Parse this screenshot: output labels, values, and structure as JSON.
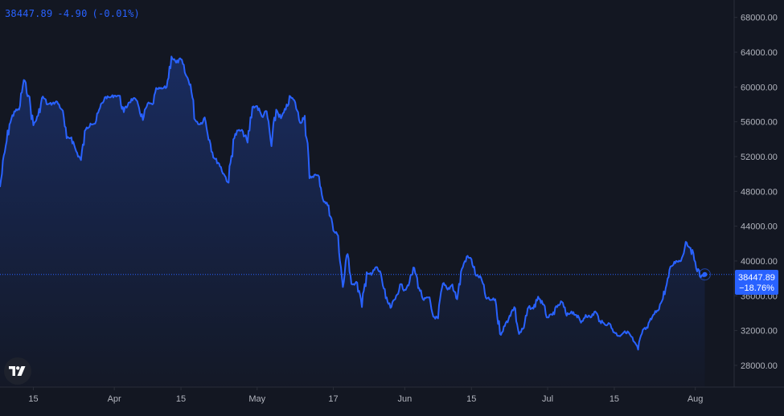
{
  "legend": {
    "last": "38447.89",
    "change": "-4.90",
    "change_pct": "(-0.01%)"
  },
  "colors": {
    "background": "#131722",
    "line": "#2962ff",
    "axis_text": "#b2b5be",
    "grid_border": "#2a2e39"
  },
  "icons": {
    "logo": "tradingview-logo-icon"
  },
  "price_label": {
    "value": "38447.89",
    "pct": "−18.76%"
  },
  "chart_data": {
    "type": "area",
    "title": "",
    "xlabel": "",
    "ylabel": "",
    "grid": false,
    "legend": "top-left",
    "y_axis_position": "right",
    "ylim": [
      25500,
      70000
    ],
    "xlim": [
      "2021-03-08",
      "2021-08-09"
    ],
    "y_ticks": [
      {
        "value": 28000,
        "label": "28000.00"
      },
      {
        "value": 32000,
        "label": "32000.00"
      },
      {
        "value": 36000,
        "label": "36000.00"
      },
      {
        "value": 40000,
        "label": "40000.00"
      },
      {
        "value": 44000,
        "label": "44000.00"
      },
      {
        "value": 48000,
        "label": "48000.00"
      },
      {
        "value": 52000,
        "label": "52000.00"
      },
      {
        "value": 56000,
        "label": "56000.00"
      },
      {
        "value": 60000,
        "label": "60000.00"
      },
      {
        "value": 64000,
        "label": "64000.00"
      },
      {
        "value": 68000,
        "label": "68000.00"
      }
    ],
    "x_ticks": [
      {
        "date": "2021-03-15",
        "label": "15"
      },
      {
        "date": "2021-04-01",
        "label": "Apr"
      },
      {
        "date": "2021-04-15",
        "label": "15"
      },
      {
        "date": "2021-05-01",
        "label": "May"
      },
      {
        "date": "2021-05-17",
        "label": "17"
      },
      {
        "date": "2021-06-01",
        "label": "Jun"
      },
      {
        "date": "2021-06-15",
        "label": "15"
      },
      {
        "date": "2021-07-01",
        "label": "Jul"
      },
      {
        "date": "2021-07-15",
        "label": "15"
      },
      {
        "date": "2021-08-01",
        "label": "Aug"
      }
    ],
    "reference_value": 38447.89,
    "series": [
      {
        "x": [
          "2021-03-08",
          "2021-03-09",
          "2021-03-10",
          "2021-03-11",
          "2021-03-12",
          "2021-03-13",
          "2021-03-14",
          "2021-03-15",
          "2021-03-16",
          "2021-03-17",
          "2021-03-18",
          "2021-03-19",
          "2021-03-20",
          "2021-03-21",
          "2021-03-22",
          "2021-03-23",
          "2021-03-24",
          "2021-03-25",
          "2021-03-26",
          "2021-03-27",
          "2021-03-28",
          "2021-03-29",
          "2021-03-30",
          "2021-03-31",
          "2021-04-01",
          "2021-04-02",
          "2021-04-03",
          "2021-04-04",
          "2021-04-05",
          "2021-04-06",
          "2021-04-07",
          "2021-04-08",
          "2021-04-09",
          "2021-04-10",
          "2021-04-11",
          "2021-04-12",
          "2021-04-13",
          "2021-04-14",
          "2021-04-15",
          "2021-04-16",
          "2021-04-17",
          "2021-04-18",
          "2021-04-19",
          "2021-04-20",
          "2021-04-21",
          "2021-04-22",
          "2021-04-23",
          "2021-04-24",
          "2021-04-25",
          "2021-04-26",
          "2021-04-27",
          "2021-04-28",
          "2021-04-29",
          "2021-04-30",
          "2021-05-01",
          "2021-05-02",
          "2021-05-03",
          "2021-05-04",
          "2021-05-05",
          "2021-05-06",
          "2021-05-07",
          "2021-05-08",
          "2021-05-09",
          "2021-05-10",
          "2021-05-11",
          "2021-05-12",
          "2021-05-13",
          "2021-05-14",
          "2021-05-15",
          "2021-05-16",
          "2021-05-17",
          "2021-05-18",
          "2021-05-19",
          "2021-05-20",
          "2021-05-21",
          "2021-05-22",
          "2021-05-23",
          "2021-05-24",
          "2021-05-25",
          "2021-05-26",
          "2021-05-27",
          "2021-05-28",
          "2021-05-29",
          "2021-05-30",
          "2021-05-31",
          "2021-06-01",
          "2021-06-02",
          "2021-06-03",
          "2021-06-04",
          "2021-06-05",
          "2021-06-06",
          "2021-06-07",
          "2021-06-08",
          "2021-06-09",
          "2021-06-10",
          "2021-06-11",
          "2021-06-12",
          "2021-06-13",
          "2021-06-14",
          "2021-06-15",
          "2021-06-16",
          "2021-06-17",
          "2021-06-18",
          "2021-06-19",
          "2021-06-20",
          "2021-06-21",
          "2021-06-22",
          "2021-06-23",
          "2021-06-24",
          "2021-06-25",
          "2021-06-26",
          "2021-06-27",
          "2021-06-28",
          "2021-06-29",
          "2021-06-30",
          "2021-07-01",
          "2021-07-02",
          "2021-07-03",
          "2021-07-04",
          "2021-07-05",
          "2021-07-06",
          "2021-07-07",
          "2021-07-08",
          "2021-07-09",
          "2021-07-10",
          "2021-07-11",
          "2021-07-12",
          "2021-07-13",
          "2021-07-14",
          "2021-07-15",
          "2021-07-16",
          "2021-07-17",
          "2021-07-18",
          "2021-07-19",
          "2021-07-20",
          "2021-07-21",
          "2021-07-22",
          "2021-07-23",
          "2021-07-24",
          "2021-07-25",
          "2021-07-26",
          "2021-07-27",
          "2021-07-28",
          "2021-07-29",
          "2021-07-30",
          "2021-07-31",
          "2021-08-01",
          "2021-08-02",
          "2021-08-03"
        ],
        "values": [
          48500,
          52500,
          55700,
          57200,
          57400,
          60800,
          59000,
          55600,
          56700,
          58900,
          58000,
          58100,
          58300,
          57400,
          54100,
          54200,
          52600,
          51600,
          55100,
          55800,
          55800,
          57600,
          58800,
          58800,
          59000,
          59000,
          57100,
          58200,
          58700,
          58000,
          56200,
          58100,
          58000,
          59800,
          59800,
          60000,
          63500,
          62800,
          63200,
          61400,
          60300,
          56200,
          55700,
          56500,
          53900,
          51800,
          51200,
          50000,
          49000,
          54000,
          55000,
          54900,
          53600,
          57700,
          57800,
          56600,
          57200,
          53200,
          57400,
          56400,
          57400,
          58900,
          58200,
          55900,
          56700,
          49500,
          49900,
          49700,
          46800,
          46400,
          43500,
          42900,
          37000,
          40800,
          37300,
          37500,
          34700,
          38700,
          38400,
          39300,
          38500,
          35700,
          34600,
          35600,
          37300,
          36700,
          37600,
          39200,
          36900,
          35500,
          35800,
          33600,
          33400,
          37400,
          36700,
          37300,
          35600,
          39100,
          40500,
          40200,
          38300,
          38100,
          35800,
          35500,
          35600,
          31600,
          32500,
          33700,
          34700,
          31600,
          32300,
          34700,
          34500,
          35900,
          35000,
          33500,
          33800,
          34700,
          35300,
          33700,
          34200,
          33800,
          32900,
          33800,
          33500,
          34200,
          33100,
          32700,
          32800,
          31800,
          31400,
          31800,
          31800,
          30800,
          29800,
          32100,
          32300,
          33600,
          34300,
          35400,
          37300,
          39400,
          40000,
          40000,
          42200,
          41500,
          39900,
          38200,
          38447.89
        ]
      }
    ]
  }
}
